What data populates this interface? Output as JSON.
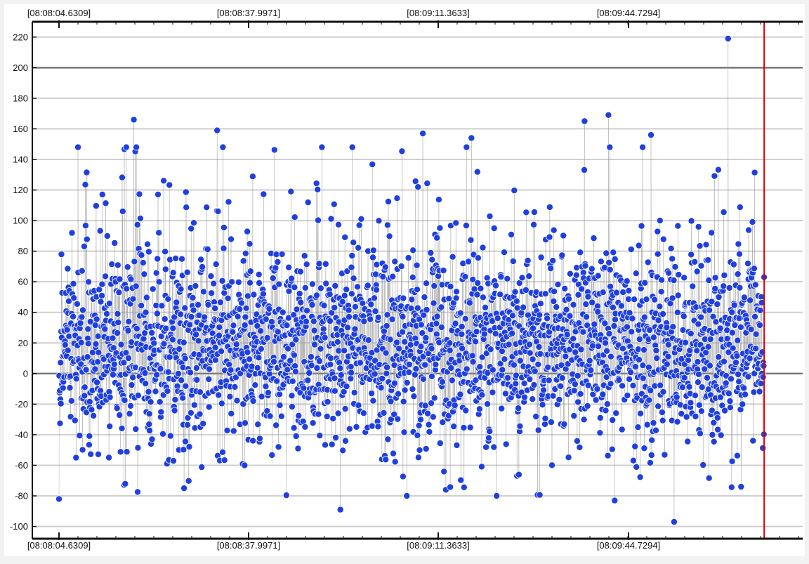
{
  "chart_data": {
    "type": "scatter",
    "title": "",
    "xlabel": "",
    "ylabel": "",
    "x_tick_labels": [
      "[08:08:04.6309]",
      "[08:08:37.9971]",
      "[08:09:11.3633]",
      "[08:09:44.7294]"
    ],
    "y_ticks": [
      220,
      200,
      180,
      160,
      140,
      120,
      100,
      80,
      60,
      40,
      20,
      0,
      -20,
      -40,
      -60,
      -80,
      -100
    ],
    "ylim": [
      -108,
      230
    ],
    "point_count": 2600,
    "cursor_x_fraction": 0.95,
    "major_gridlines_y": [
      0,
      200
    ],
    "grid": true,
    "colors": {
      "points": "#1f3fe0",
      "point_stroke": "#ffffff",
      "connector": "#9a9a9a",
      "cursor": "#dd0000",
      "grid_minor": "#cfcfcf",
      "grid_major": "#777777",
      "frame": "#111111",
      "panel": "#ffffff"
    },
    "notable_points": [
      {
        "x_fraction": 0.903,
        "y": 219
      },
      {
        "x_fraction": 0.132,
        "y": 166
      },
      {
        "x_fraction": 0.748,
        "y": 169
      },
      {
        "x_fraction": 0.24,
        "y": 159
      },
      {
        "x_fraction": 0.507,
        "y": 157
      },
      {
        "x_fraction": 0.803,
        "y": 156
      },
      {
        "x_fraction": 0.57,
        "y": 154
      },
      {
        "x_fraction": 0.717,
        "y": 165
      },
      {
        "x_fraction": 0.376,
        "y": 148
      },
      {
        "x_fraction": 0.833,
        "y": -97
      },
      {
        "x_fraction": 0.756,
        "y": -83
      },
      {
        "x_fraction": 0.016,
        "y": -82
      },
      {
        "x_fraction": 0.4,
        "y": -89
      },
      {
        "x_fraction": 0.537,
        "y": -76
      },
      {
        "x_fraction": 0.92,
        "y": -74
      },
      {
        "x_fraction": 0.197,
        "y": -75
      },
      {
        "x_fraction": 0.968,
        "y": 110
      },
      {
        "x_fraction": 0.971,
        "y": 63
      }
    ]
  }
}
